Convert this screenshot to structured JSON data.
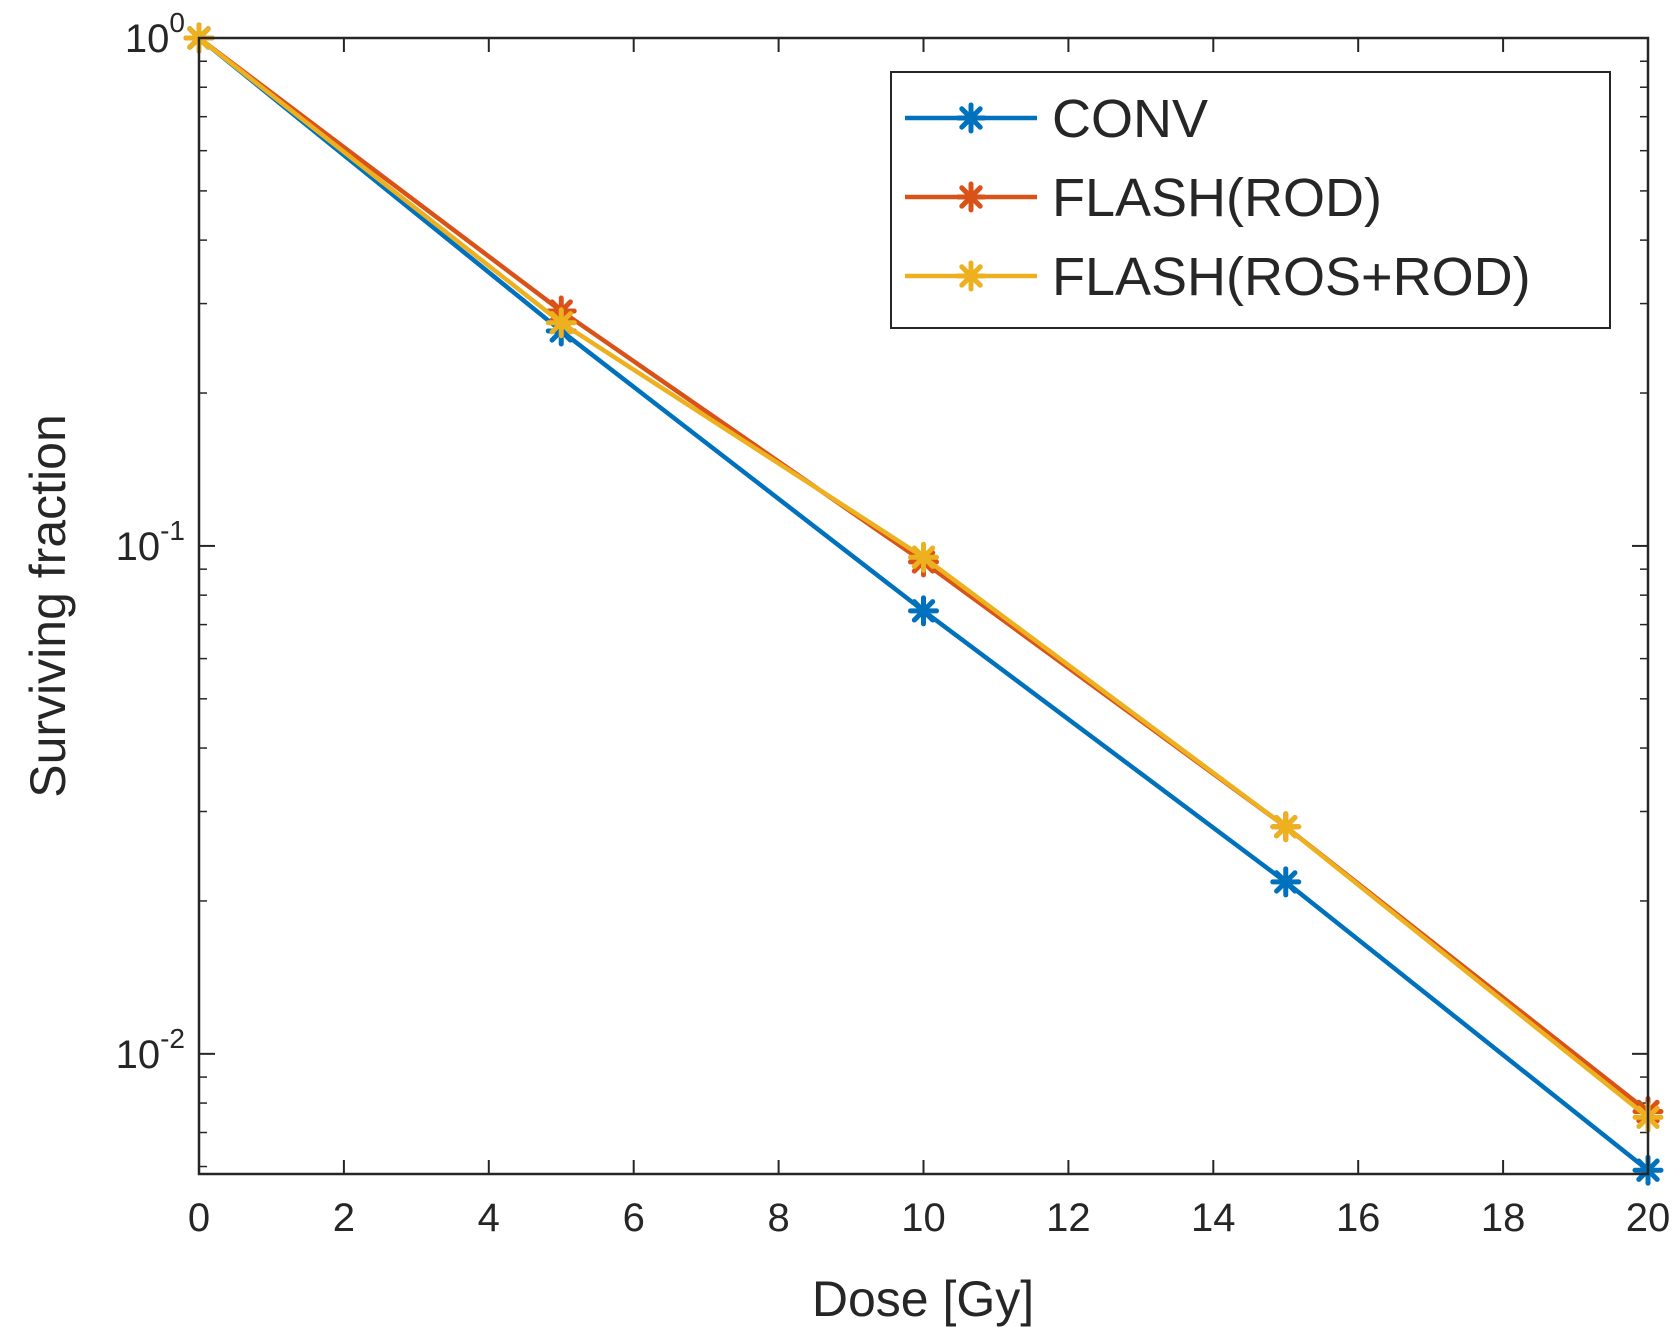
{
  "chart_data": {
    "type": "line",
    "title": "",
    "xlabel": "Dose [Gy]",
    "ylabel": "Surviving fraction",
    "xlim": [
      0,
      20
    ],
    "ylim": [
      0.0058,
      1
    ],
    "yscale": "log",
    "grid": false,
    "legend_position": "top-right",
    "x": [
      0,
      5,
      10,
      15,
      20
    ],
    "x_ticks": [
      "0",
      "2",
      "4",
      "6",
      "8",
      "10",
      "12",
      "14",
      "16",
      "18",
      "20"
    ],
    "y_ticks": [
      {
        "value": 1,
        "base": "10",
        "exp": "0"
      },
      {
        "value": 0.1,
        "base": "10",
        "exp": "-1"
      },
      {
        "value": 0.01,
        "base": "10",
        "exp": "-2"
      }
    ],
    "series": [
      {
        "name": "CONV",
        "color": "#0072BD",
        "values": [
          1.0,
          0.265,
          0.0745,
          0.0218,
          0.0059
        ]
      },
      {
        "name": "FLASH(ROD)",
        "color": "#D95319",
        "values": [
          1.0,
          0.29,
          0.093,
          0.028,
          0.0077
        ]
      },
      {
        "name": "FLASH(ROS+ROD)",
        "color": "#EDB120",
        "values": [
          1.0,
          0.275,
          0.095,
          0.028,
          0.0075
        ]
      }
    ]
  }
}
